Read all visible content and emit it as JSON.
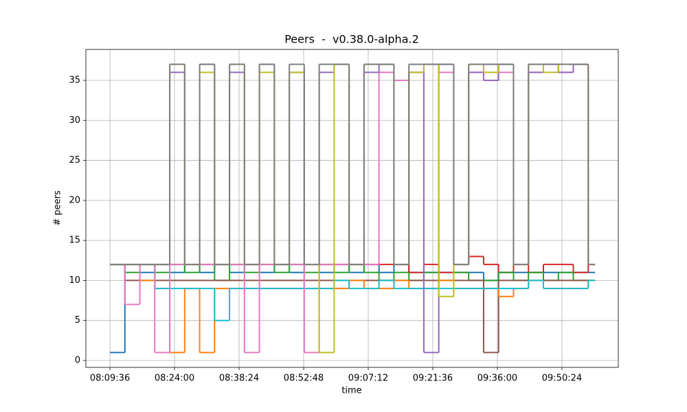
{
  "chart_data": {
    "type": "step",
    "title": "Peers  -  v0.38.0-alpha.2",
    "x_label": "time",
    "y_label": "# peers",
    "x": [
      29376,
      29576,
      29776,
      29976,
      30176,
      30376,
      30576,
      30776,
      30976,
      31176,
      31376,
      31576,
      31776,
      31976,
      32176,
      32376,
      32576,
      32776,
      32976,
      33176,
      33376,
      33576,
      33776,
      33976,
      34176,
      34376,
      34576,
      34776,
      34976,
      35176,
      35376,
      35576,
      35776
    ],
    "series": [
      {
        "color": "#1f77b4",
        "values": [
          1,
          12,
          11,
          12,
          11,
          12,
          11,
          12,
          11,
          12,
          11,
          12,
          11,
          12,
          11,
          12,
          11,
          12,
          11,
          12,
          11,
          11,
          11,
          11,
          11,
          10,
          11,
          11,
          11,
          11,
          11,
          11,
          11
        ]
      },
      {
        "color": "#d62728",
        "values": [
          12,
          12,
          12,
          12,
          12,
          12,
          12,
          12,
          12,
          12,
          12,
          12,
          12,
          12,
          12,
          12,
          12,
          12,
          12,
          12,
          11,
          12,
          11,
          12,
          13,
          12,
          11,
          12,
          11,
          12,
          12,
          11,
          12
        ]
      },
      {
        "color": "#2ca02c",
        "values": [
          12,
          11,
          12,
          11,
          12,
          11,
          12,
          10,
          12,
          11,
          12,
          11,
          12,
          11,
          12,
          11,
          12,
          11,
          10,
          11,
          10,
          11,
          10,
          11,
          10,
          10,
          11,
          10,
          11,
          10,
          11,
          10,
          10
        ]
      },
      {
        "color": "#8c564b",
        "values": [
          12,
          10,
          10,
          10,
          10,
          10,
          10,
          10,
          10,
          10,
          10,
          10,
          10,
          10,
          10,
          10,
          10,
          10,
          10,
          10,
          10,
          10,
          10,
          10,
          10,
          1,
          10,
          10,
          10,
          10,
          10,
          10,
          10
        ]
      },
      {
        "color": "#ff7f0e",
        "values": [
          12,
          12,
          10,
          9,
          1,
          9,
          1,
          9,
          9,
          9,
          9,
          9,
          9,
          9,
          9,
          9,
          10,
          9,
          9,
          10,
          9,
          9,
          10,
          9,
          9,
          9,
          8,
          9,
          10,
          9,
          9,
          9,
          10
        ]
      },
      {
        "color": "#17becf",
        "values": [
          12,
          12,
          12,
          9,
          9,
          9,
          9,
          5,
          9,
          9,
          9,
          9,
          9,
          9,
          9,
          10,
          9,
          9,
          10,
          9,
          9,
          9,
          9,
          9,
          9,
          9,
          9,
          9,
          10,
          9,
          9,
          9,
          10
        ]
      },
      {
        "color": "#e377c2",
        "values": [
          12,
          7,
          12,
          1,
          12,
          12,
          12,
          12,
          12,
          1,
          12,
          12,
          12,
          1,
          12,
          12,
          12,
          12,
          36,
          35,
          36,
          37,
          36,
          12,
          36,
          37,
          36,
          12,
          36,
          37,
          36,
          37,
          12
        ]
      },
      {
        "color": "#9467bd",
        "values": [
          12,
          12,
          12,
          12,
          36,
          12,
          37,
          12,
          36,
          12,
          37,
          12,
          36,
          12,
          36,
          37,
          12,
          36,
          37,
          12,
          36,
          1,
          37,
          12,
          36,
          35,
          37,
          12,
          36,
          37,
          36,
          37,
          12
        ]
      },
      {
        "color": "#bcbd22",
        "values": [
          12,
          12,
          12,
          12,
          37,
          12,
          36,
          12,
          37,
          12,
          36,
          12,
          36,
          12,
          1,
          37,
          12,
          37,
          37,
          12,
          36,
          37,
          8,
          12,
          37,
          36,
          37,
          12,
          37,
          36,
          37,
          37,
          12
        ]
      },
      {
        "color": "#7f7f7f",
        "values": [
          12,
          12,
          12,
          12,
          37,
          12,
          37,
          12,
          37,
          12,
          37,
          12,
          37,
          12,
          37,
          37,
          12,
          37,
          37,
          12,
          37,
          37,
          37,
          12,
          37,
          37,
          37,
          12,
          37,
          37,
          37,
          37,
          12
        ]
      }
    ],
    "xlim": [
      29054,
      36178
    ],
    "xticks": [
      {
        "value": 29376,
        "label": "08:09:36"
      },
      {
        "value": 30240,
        "label": "08:24:00"
      },
      {
        "value": 31104,
        "label": "08:38:24"
      },
      {
        "value": 31968,
        "label": "08:52:48"
      },
      {
        "value": 32832,
        "label": "09:07:12"
      },
      {
        "value": 33696,
        "label": "09:21:36"
      },
      {
        "value": 34560,
        "label": "09:36:00"
      },
      {
        "value": 35424,
        "label": "09:50:24"
      }
    ],
    "ylim": [
      -0.86,
      38.86
    ],
    "yticks": [
      0,
      5,
      10,
      15,
      20,
      25,
      30,
      35
    ],
    "grid": true
  }
}
